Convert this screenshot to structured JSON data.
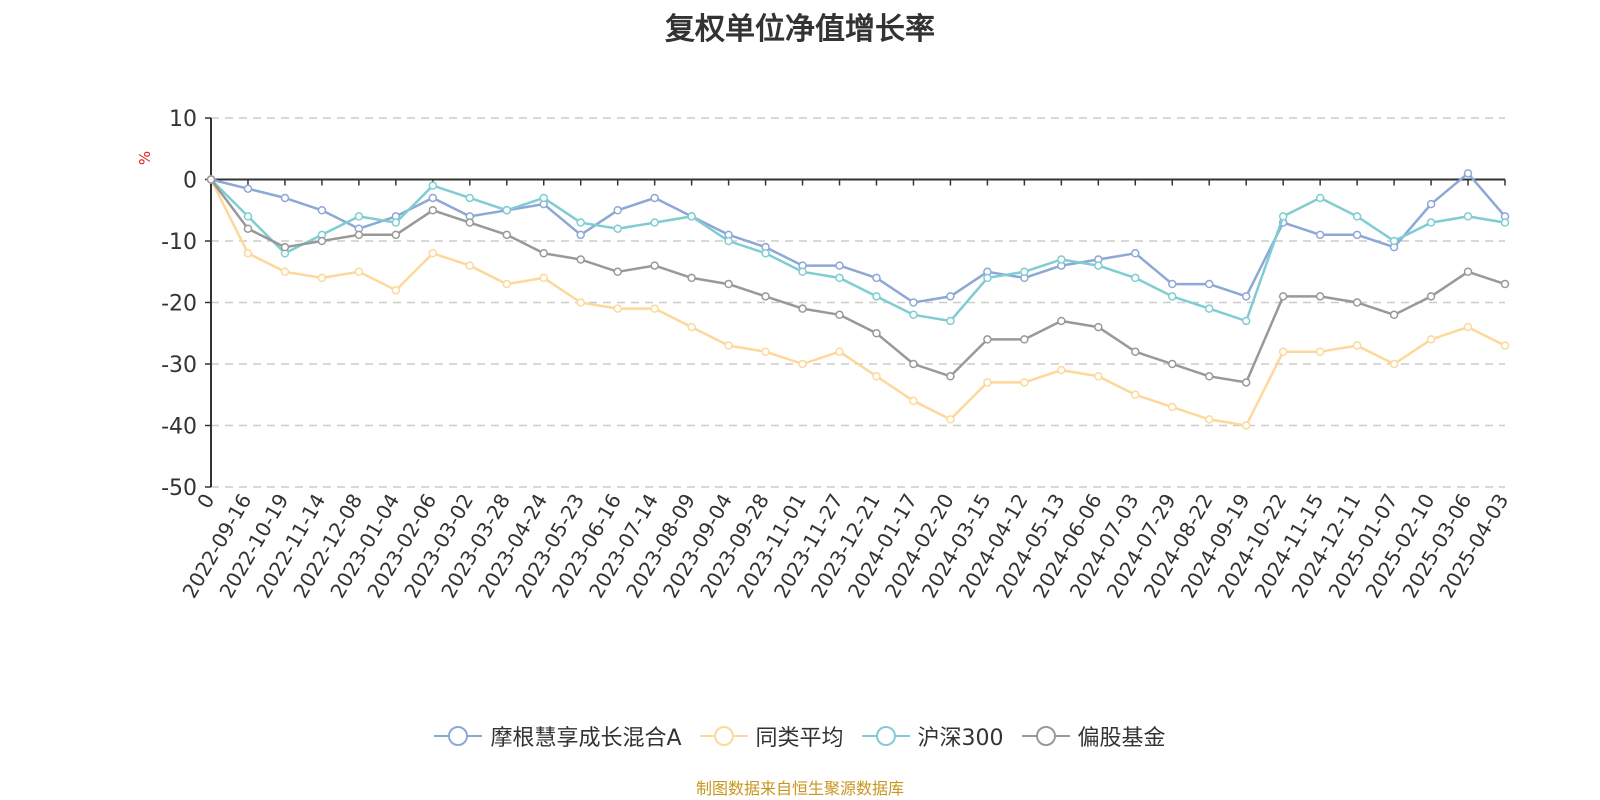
{
  "chart_data": {
    "type": "line",
    "title": "复权单位净值增长率",
    "ylabel": "%",
    "ylim": [
      -50,
      10
    ],
    "yticks": [
      10,
      0,
      -10,
      -20,
      -30,
      -40,
      -50
    ],
    "grid": true,
    "legend_position": "bottom-center",
    "categories": [
      "0",
      "2022-09-16",
      "2022-10-19",
      "2022-11-14",
      "2022-12-08",
      "2023-01-04",
      "2023-02-06",
      "2023-03-02",
      "2023-03-28",
      "2023-04-24",
      "2023-05-23",
      "2023-06-16",
      "2023-07-14",
      "2023-08-09",
      "2023-09-04",
      "2023-09-28",
      "2023-11-01",
      "2023-11-27",
      "2023-12-21",
      "2024-01-17",
      "2024-02-20",
      "2024-03-15",
      "2024-04-12",
      "2024-05-13",
      "2024-06-06",
      "2024-07-03",
      "2024-07-29",
      "2024-08-22",
      "2024-09-19",
      "2024-10-22",
      "2024-11-15",
      "2024-12-11",
      "2025-01-07",
      "2025-02-10",
      "2025-03-06",
      "2025-04-03"
    ],
    "series": [
      {
        "name": "摩根慧享成长混合A",
        "color": "#8da8d6",
        "values": [
          0,
          -1.5,
          -3,
          -5,
          -8,
          -6,
          -3,
          -6,
          -5,
          -4,
          -9,
          -5,
          -3,
          -6,
          -9,
          -11,
          -14,
          -14,
          -16,
          -20,
          -19,
          -15,
          -16,
          -14,
          -13,
          -12,
          -17,
          -17,
          -19,
          -7,
          -9,
          -9,
          -11,
          -4,
          1,
          -6
        ]
      },
      {
        "name": "同类平均",
        "color": "#fdd89a",
        "values": [
          0,
          -12,
          -15,
          -16,
          -15,
          -18,
          -12,
          -14,
          -17,
          -16,
          -20,
          -21,
          -21,
          -24,
          -27,
          -28,
          -30,
          -28,
          -32,
          -36,
          -39,
          -33,
          -33,
          -31,
          -32,
          -35,
          -37,
          -39,
          -40,
          -28,
          -28,
          -27,
          -30,
          -26,
          -24,
          -27
        ]
      },
      {
        "name": "沪深300",
        "color": "#7fcdd2",
        "values": [
          0,
          -6,
          -12,
          -9,
          -6,
          -7,
          -1,
          -3,
          -5,
          -3,
          -7,
          -8,
          -7,
          -6,
          -10,
          -12,
          -15,
          -16,
          -19,
          -22,
          -23,
          -16,
          -15,
          -13,
          -14,
          -16,
          -19,
          -21,
          -23,
          -6,
          -3,
          -6,
          -10,
          -7,
          -6,
          -7
        ]
      },
      {
        "name": "偏股基金",
        "color": "#999999",
        "values": [
          0,
          -8,
          -11,
          -10,
          -9,
          -9,
          -5,
          -7,
          -9,
          -12,
          -13,
          -15,
          -14,
          -16,
          -17,
          -19,
          -21,
          -22,
          -25,
          -30,
          -32,
          -26,
          -26,
          -23,
          -24,
          -28,
          -30,
          -32,
          -33,
          -19,
          -19,
          -20,
          -22,
          -19,
          -15,
          -17
        ]
      }
    ],
    "source_note": "制图数据来自恒生聚源数据库"
  }
}
